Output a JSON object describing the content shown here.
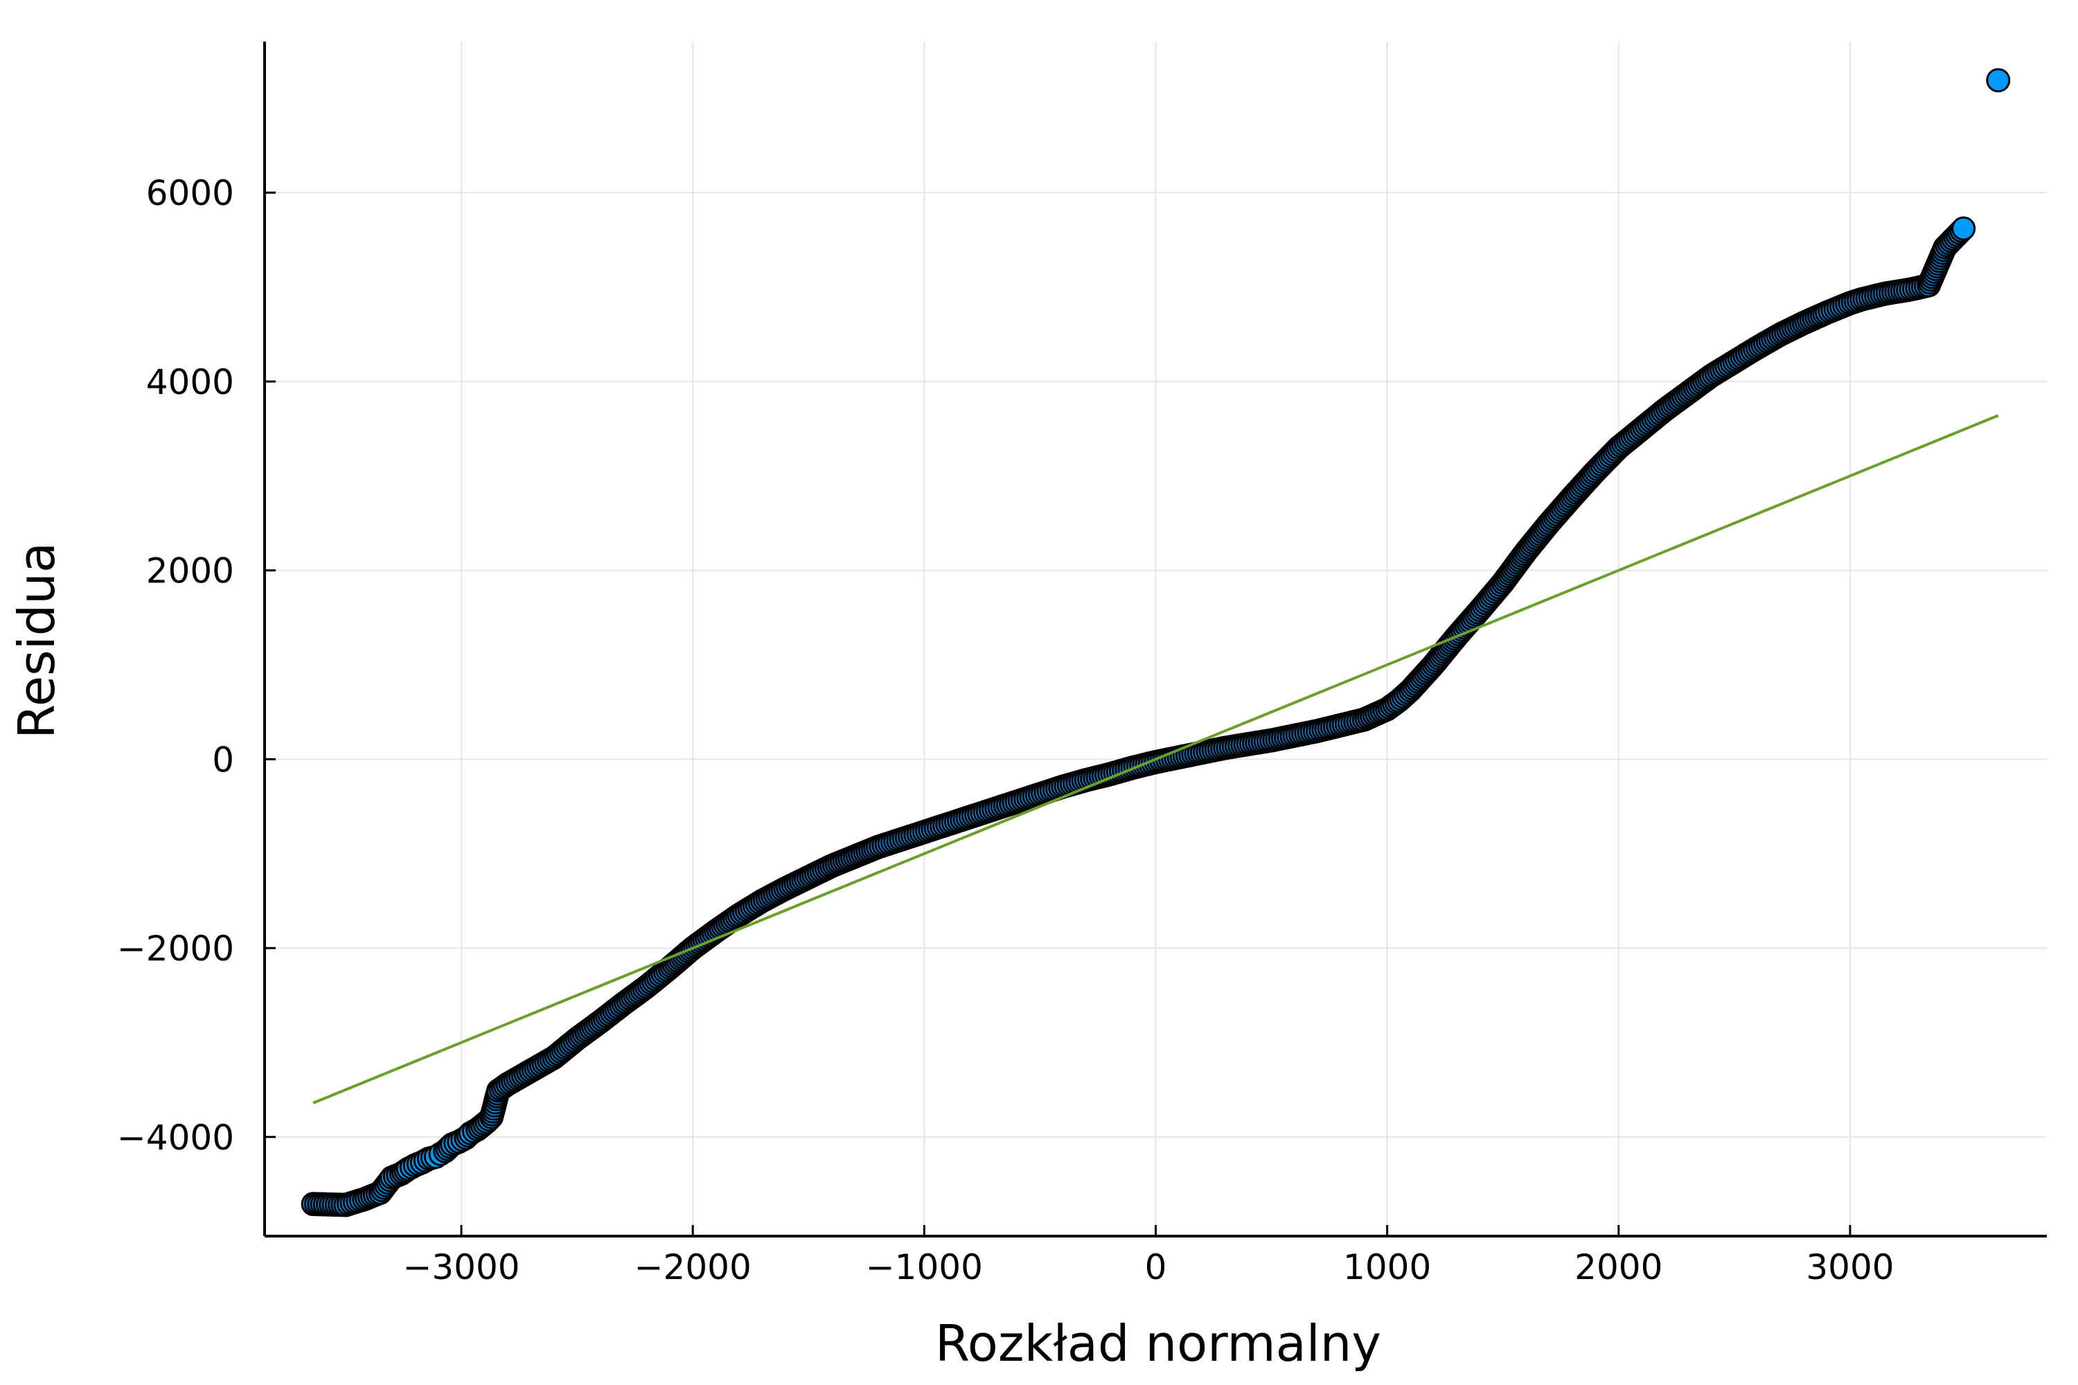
{
  "chart_data": {
    "type": "scatter",
    "title": "",
    "xlabel": "Rozkład normalny",
    "ylabel": "Residua",
    "xlim": [
      -3850,
      3850
    ],
    "ylim": [
      -5050,
      7600
    ],
    "xticks": [
      -3000,
      -2000,
      -1000,
      0,
      1000,
      2000,
      3000
    ],
    "xtick_labels": [
      "−3000",
      "−2000",
      "−1000",
      "0",
      "1000",
      "2000",
      "3000"
    ],
    "yticks": [
      -4000,
      -2000,
      0,
      2000,
      4000,
      6000
    ],
    "ytick_labels": [
      "−4000",
      "−2000",
      "0",
      "2000",
      "4000",
      "6000"
    ],
    "grid": true,
    "legend": "none",
    "colors": {
      "points": "#009af9",
      "point_stroke": "#000000",
      "reference_line": "#6a9f2a",
      "grid": "#e6e6e6"
    },
    "series": [
      {
        "kind": "points",
        "points": [
          [
            -3640,
            -4710
          ],
          [
            -3500,
            -4720
          ],
          [
            -3420,
            -4660
          ],
          [
            -3350,
            -4590
          ],
          [
            -3300,
            -4430
          ],
          [
            -3260,
            -4390
          ],
          [
            -3230,
            -4340
          ],
          [
            -3200,
            -4300
          ],
          [
            -3170,
            -4270
          ],
          [
            -3140,
            -4230
          ],
          [
            -3110,
            -4210
          ],
          [
            -3090,
            -4180
          ],
          [
            -3070,
            -4150
          ],
          [
            -3040,
            -4080
          ],
          [
            -3010,
            -4050
          ],
          [
            -2980,
            -4010
          ],
          [
            -2960,
            -3960
          ],
          [
            -2930,
            -3920
          ],
          [
            -2910,
            -3880
          ],
          [
            -2890,
            -3840
          ],
          [
            -2870,
            -3790
          ],
          [
            -2860,
            -3700
          ],
          [
            -2850,
            -3600
          ],
          [
            -2840,
            -3510
          ],
          [
            -2800,
            -3440
          ],
          [
            -2700,
            -3300
          ],
          [
            -2600,
            -3160
          ],
          [
            -2500,
            -2960
          ],
          [
            -2400,
            -2780
          ],
          [
            -2300,
            -2590
          ],
          [
            -2200,
            -2410
          ],
          [
            -2100,
            -2210
          ],
          [
            -2000,
            -2000
          ],
          [
            -1900,
            -1820
          ],
          [
            -1800,
            -1650
          ],
          [
            -1700,
            -1500
          ],
          [
            -1600,
            -1370
          ],
          [
            -1500,
            -1250
          ],
          [
            -1400,
            -1130
          ],
          [
            -1300,
            -1030
          ],
          [
            -1200,
            -930
          ],
          [
            -1100,
            -850
          ],
          [
            -1000,
            -770
          ],
          [
            -900,
            -690
          ],
          [
            -800,
            -610
          ],
          [
            -700,
            -530
          ],
          [
            -600,
            -450
          ],
          [
            -500,
            -370
          ],
          [
            -400,
            -290
          ],
          [
            -300,
            -220
          ],
          [
            -200,
            -160
          ],
          [
            -100,
            -90
          ],
          [
            0,
            -30
          ],
          [
            100,
            20
          ],
          [
            200,
            70
          ],
          [
            300,
            120
          ],
          [
            400,
            160
          ],
          [
            500,
            200
          ],
          [
            600,
            250
          ],
          [
            700,
            300
          ],
          [
            800,
            360
          ],
          [
            900,
            420
          ],
          [
            1000,
            530
          ],
          [
            1050,
            620
          ],
          [
            1100,
            730
          ],
          [
            1200,
            1000
          ],
          [
            1300,
            1300
          ],
          [
            1400,
            1580
          ],
          [
            1500,
            1870
          ],
          [
            1600,
            2200
          ],
          [
            1700,
            2500
          ],
          [
            1800,
            2780
          ],
          [
            1900,
            3050
          ],
          [
            2000,
            3300
          ],
          [
            2100,
            3500
          ],
          [
            2200,
            3700
          ],
          [
            2300,
            3880
          ],
          [
            2400,
            4060
          ],
          [
            2500,
            4210
          ],
          [
            2600,
            4360
          ],
          [
            2700,
            4500
          ],
          [
            2800,
            4620
          ],
          [
            2900,
            4730
          ],
          [
            2950,
            4780
          ],
          [
            3000,
            4830
          ],
          [
            3050,
            4870
          ],
          [
            3100,
            4900
          ],
          [
            3150,
            4930
          ],
          [
            3200,
            4950
          ],
          [
            3250,
            4970
          ],
          [
            3290,
            4990
          ],
          [
            3340,
            5020
          ],
          [
            3410,
            5420
          ],
          [
            3490,
            5620
          ],
          [
            3640,
            7190
          ]
        ]
      },
      {
        "kind": "reference-line",
        "points": [
          [
            -3640,
            -3640
          ],
          [
            3640,
            3640
          ]
        ]
      }
    ]
  }
}
